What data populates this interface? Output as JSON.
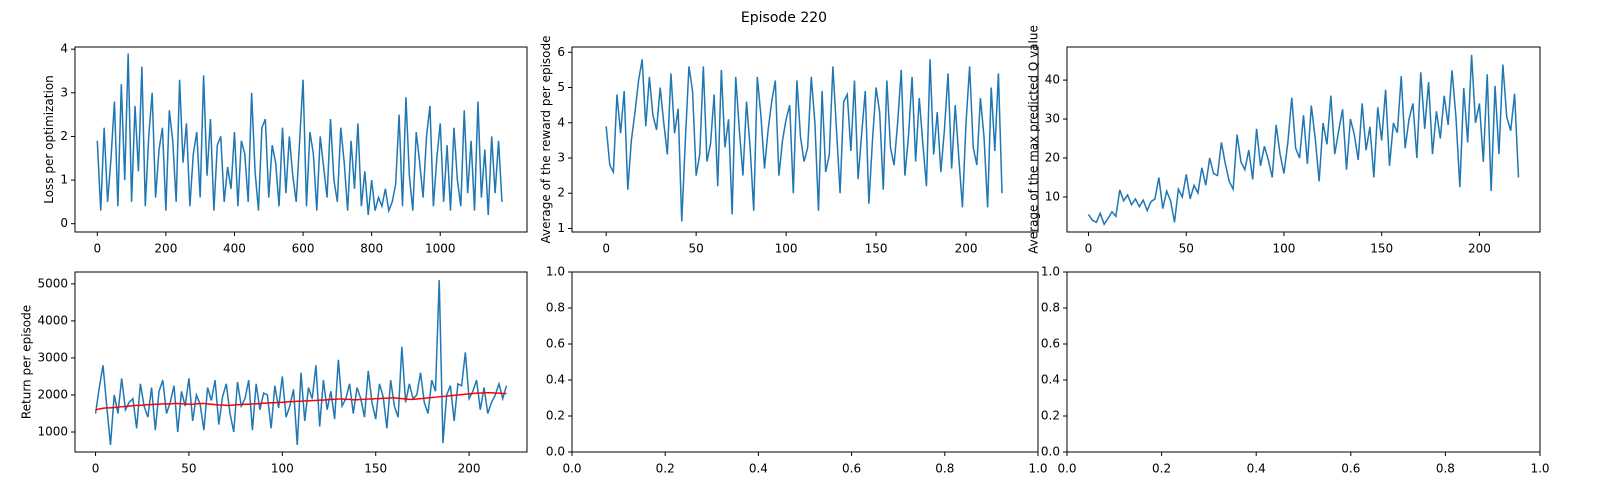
{
  "title": "Episode 220",
  "chart_data": [
    {
      "type": "line",
      "ylabel": "Loss per optimization",
      "x": [
        0,
        10,
        20,
        30,
        40,
        50,
        60,
        70,
        80,
        90,
        100,
        110,
        120,
        130,
        140,
        150,
        160,
        170,
        180,
        190,
        200,
        210,
        220,
        230,
        240,
        250,
        260,
        270,
        280,
        290,
        300,
        310,
        320,
        330,
        340,
        350,
        360,
        370,
        380,
        390,
        400,
        410,
        420,
        430,
        440,
        450,
        460,
        470,
        480,
        490,
        500,
        510,
        520,
        530,
        540,
        550,
        560,
        570,
        580,
        590,
        600,
        610,
        620,
        630,
        640,
        650,
        660,
        670,
        680,
        690,
        700,
        710,
        720,
        730,
        740,
        750,
        760,
        770,
        780,
        790,
        800,
        810,
        820,
        830,
        840,
        850,
        860,
        870,
        880,
        890,
        900,
        910,
        920,
        930,
        940,
        950,
        960,
        970,
        980,
        990,
        1000,
        1010,
        1020,
        1030,
        1040,
        1050,
        1060,
        1070,
        1080,
        1090,
        1100,
        1110,
        1120,
        1130,
        1140,
        1150,
        1160,
        1170,
        1180
      ],
      "series": [
        {
          "color": "#1f77b4",
          "values": [
            1.9,
            0.3,
            2.2,
            0.5,
            1.5,
            2.8,
            0.4,
            3.2,
            1.0,
            3.9,
            0.5,
            2.7,
            1.2,
            3.6,
            0.4,
            2.0,
            3.0,
            0.6,
            1.7,
            2.2,
            0.3,
            2.6,
            1.9,
            0.5,
            3.3,
            1.4,
            2.3,
            0.4,
            1.6,
            2.1,
            0.6,
            3.4,
            1.1,
            2.4,
            0.3,
            1.8,
            2.0,
            0.5,
            1.3,
            0.8,
            2.1,
            0.4,
            1.9,
            1.6,
            0.5,
            3.0,
            1.2,
            0.3,
            2.2,
            2.4,
            0.6,
            1.8,
            1.4,
            0.4,
            2.2,
            0.7,
            2.0,
            1.1,
            0.5,
            1.9,
            3.3,
            0.4,
            2.1,
            1.6,
            0.3,
            2.0,
            1.3,
            0.6,
            2.4,
            1.0,
            0.5,
            2.2,
            1.4,
            0.3,
            1.9,
            0.8,
            2.3,
            0.4,
            1.2,
            0.2,
            1.0,
            0.3,
            0.6,
            0.4,
            0.8,
            0.3,
            0.5,
            0.9,
            2.5,
            0.4,
            2.9,
            1.1,
            0.3,
            2.1,
            1.4,
            0.6,
            2.0,
            2.7,
            0.4,
            1.5,
            2.3,
            0.5,
            1.8,
            0.3,
            2.2,
            1.0,
            0.4,
            2.6,
            0.7,
            1.9,
            0.3,
            2.8,
            0.6,
            1.7,
            0.2,
            2.0,
            0.7,
            1.9,
            0.5
          ]
        }
      ],
      "xlim": [
        -65,
        1253
      ],
      "xticks": [
        0,
        200,
        400,
        600,
        800,
        1000
      ],
      "ylim": [
        -0.19,
        4.05
      ],
      "yticks": [
        0,
        1,
        2,
        3,
        4
      ]
    },
    {
      "type": "line",
      "ylabel": "Average of the reward per episode",
      "x": [
        0,
        2,
        4,
        6,
        8,
        10,
        12,
        14,
        16,
        18,
        20,
        22,
        24,
        26,
        28,
        30,
        32,
        34,
        36,
        38,
        40,
        42,
        44,
        46,
        48,
        50,
        52,
        54,
        56,
        58,
        60,
        62,
        64,
        66,
        68,
        70,
        72,
        74,
        76,
        78,
        80,
        82,
        84,
        86,
        88,
        90,
        92,
        94,
        96,
        98,
        100,
        102,
        104,
        106,
        108,
        110,
        112,
        114,
        116,
        118,
        120,
        122,
        124,
        126,
        128,
        130,
        132,
        134,
        136,
        138,
        140,
        142,
        144,
        146,
        148,
        150,
        152,
        154,
        156,
        158,
        160,
        162,
        164,
        166,
        168,
        170,
        172,
        174,
        176,
        178,
        180,
        182,
        184,
        186,
        188,
        190,
        192,
        194,
        196,
        198,
        200,
        202,
        204,
        206,
        208,
        210,
        212,
        214,
        216,
        218,
        220
      ],
      "series": [
        {
          "color": "#1f77b4",
          "values": [
            3.9,
            2.8,
            2.6,
            4.8,
            3.7,
            4.9,
            2.1,
            3.5,
            4.3,
            5.2,
            5.8,
            3.9,
            5.3,
            4.2,
            3.8,
            5.0,
            4.0,
            3.1,
            5.4,
            3.7,
            4.4,
            1.2,
            3.5,
            5.6,
            4.9,
            2.5,
            3.1,
            5.6,
            2.9,
            3.4,
            4.8,
            2.2,
            5.5,
            3.3,
            4.1,
            1.4,
            5.3,
            3.8,
            2.5,
            4.6,
            3.3,
            1.5,
            5.3,
            4.2,
            2.7,
            3.8,
            4.6,
            5.2,
            2.5,
            3.5,
            4.1,
            4.5,
            2.0,
            5.2,
            3.6,
            2.9,
            3.3,
            5.3,
            4.0,
            1.5,
            4.9,
            2.6,
            3.1,
            5.6,
            3.8,
            2.0,
            4.6,
            4.8,
            3.2,
            5.2,
            2.4,
            3.7,
            4.9,
            1.7,
            3.5,
            5.0,
            4.3,
            2.1,
            5.2,
            3.3,
            2.8,
            4.0,
            5.5,
            2.5,
            3.6,
            5.3,
            2.9,
            4.7,
            3.4,
            2.2,
            5.8,
            3.1,
            4.3,
            2.6,
            3.8,
            5.4,
            2.7,
            4.5,
            3.0,
            1.6,
            4.0,
            5.6,
            3.3,
            2.8,
            4.7,
            3.6,
            1.6,
            5.0,
            3.2,
            5.4,
            2.0
          ]
        }
      ],
      "xlim": [
        -19,
        240
      ],
      "xticks": [
        0,
        50,
        100,
        150,
        200
      ],
      "ylim": [
        0.9,
        6.15
      ],
      "yticks": [
        1,
        2,
        3,
        4,
        5,
        6
      ]
    },
    {
      "type": "line",
      "ylabel": "Average of the max predicted Q value",
      "x": [
        0,
        2,
        4,
        6,
        8,
        10,
        12,
        14,
        16,
        18,
        20,
        22,
        24,
        26,
        28,
        30,
        32,
        34,
        36,
        38,
        40,
        42,
        44,
        46,
        48,
        50,
        52,
        54,
        56,
        58,
        60,
        62,
        64,
        66,
        68,
        70,
        72,
        74,
        76,
        78,
        80,
        82,
        84,
        86,
        88,
        90,
        92,
        94,
        96,
        98,
        100,
        102,
        104,
        106,
        108,
        110,
        112,
        114,
        116,
        118,
        120,
        122,
        124,
        126,
        128,
        130,
        132,
        134,
        136,
        138,
        140,
        142,
        144,
        146,
        148,
        150,
        152,
        154,
        156,
        158,
        160,
        162,
        164,
        166,
        168,
        170,
        172,
        174,
        176,
        178,
        180,
        182,
        184,
        186,
        188,
        190,
        192,
        194,
        196,
        198,
        200,
        202,
        204,
        206,
        208,
        210,
        212,
        214,
        216,
        218,
        220
      ],
      "series": [
        {
          "color": "#1f77b4",
          "values": [
            5.5,
            4.0,
            3.5,
            5.8,
            3.0,
            4.5,
            6.2,
            5.0,
            11.8,
            9.0,
            10.5,
            8.0,
            9.5,
            7.5,
            9.2,
            6.5,
            8.8,
            9.5,
            15.0,
            7.0,
            11.5,
            9.0,
            3.5,
            12.0,
            10.0,
            15.8,
            9.5,
            13.0,
            11.0,
            17.5,
            13.0,
            20.0,
            16.0,
            15.5,
            24.0,
            18.5,
            14.0,
            12.0,
            26.0,
            19.0,
            17.0,
            22.0,
            14.5,
            27.5,
            18.0,
            23.0,
            19.5,
            15.0,
            28.5,
            21.0,
            16.0,
            24.0,
            35.5,
            22.5,
            20.0,
            31.0,
            18.5,
            33.5,
            25.0,
            14.0,
            29.0,
            23.5,
            36.0,
            21.0,
            27.0,
            32.5,
            17.0,
            30.0,
            26.0,
            19.5,
            34.0,
            22.0,
            28.0,
            15.0,
            33.0,
            24.5,
            37.5,
            18.0,
            29.0,
            26.5,
            41.0,
            22.5,
            30.0,
            34.0,
            20.0,
            42.0,
            27.5,
            39.5,
            21.0,
            32.0,
            25.0,
            36.0,
            28.5,
            42.5,
            30.5,
            12.5,
            38.0,
            24.0,
            46.5,
            29.0,
            34.0,
            19.0,
            41.5,
            11.5,
            38.5,
            21.0,
            44.0,
            30.5,
            27.0,
            36.5,
            15.0
          ]
        }
      ],
      "xlim": [
        -11,
        231
      ],
      "xticks": [
        0,
        50,
        100,
        150,
        200
      ],
      "ylim": [
        1,
        48.5
      ],
      "yticks": [
        10,
        20,
        30,
        40
      ]
    },
    {
      "type": "line",
      "ylabel": "Return per episode",
      "x": [
        0,
        2,
        4,
        6,
        8,
        10,
        12,
        14,
        16,
        18,
        20,
        22,
        24,
        26,
        28,
        30,
        32,
        34,
        36,
        38,
        40,
        42,
        44,
        46,
        48,
        50,
        52,
        54,
        56,
        58,
        60,
        62,
        64,
        66,
        68,
        70,
        72,
        74,
        76,
        78,
        80,
        82,
        84,
        86,
        88,
        90,
        92,
        94,
        96,
        98,
        100,
        102,
        104,
        106,
        108,
        110,
        112,
        114,
        116,
        118,
        120,
        122,
        124,
        126,
        128,
        130,
        132,
        134,
        136,
        138,
        140,
        142,
        144,
        146,
        148,
        150,
        152,
        154,
        156,
        158,
        160,
        162,
        164,
        166,
        168,
        170,
        172,
        174,
        176,
        178,
        180,
        182,
        184,
        186,
        188,
        190,
        192,
        194,
        196,
        198,
        200,
        202,
        204,
        206,
        208,
        210,
        212,
        214,
        216,
        218,
        220
      ],
      "series": [
        {
          "color": "#1f77b4",
          "values": [
            1500,
            2200,
            2800,
            1700,
            650,
            2000,
            1500,
            2450,
            1600,
            1800,
            1900,
            1100,
            2300,
            1700,
            1400,
            2200,
            1050,
            2100,
            2400,
            1500,
            1800,
            2250,
            1000,
            2100,
            1700,
            2450,
            1300,
            2000,
            1750,
            1050,
            2200,
            1850,
            2400,
            1200,
            1950,
            2300,
            1500,
            1000,
            2350,
            1700,
            1900,
            2400,
            1050,
            2300,
            1600,
            2050,
            2000,
            1100,
            2250,
            1650,
            2500,
            1400,
            1700,
            2150,
            650,
            2600,
            1300,
            2200,
            1900,
            2800,
            1150,
            2400,
            1600,
            2100,
            1350,
            2950,
            1700,
            1900,
            2300,
            1500,
            2200,
            1900,
            1400,
            2650,
            1800,
            1350,
            2300,
            1950,
            1100,
            2400,
            1700,
            1400,
            3300,
            1800,
            2300,
            1900,
            2000,
            2600,
            1800,
            1500,
            2400,
            2100,
            5100,
            700,
            2000,
            2250,
            1300,
            2300,
            2250,
            3150,
            1900,
            2100,
            2400,
            1600,
            2200,
            1500,
            1800,
            2000,
            2300,
            1900,
            2250
          ]
        },
        {
          "color": "#ff0000",
          "values": [
            1600,
            1620,
            1640,
            1650,
            1650,
            1660,
            1670,
            1680,
            1690,
            1700,
            1710,
            1720,
            1720,
            1730,
            1740,
            1740,
            1750,
            1750,
            1760,
            1760,
            1760,
            1770,
            1770,
            1760,
            1760,
            1750,
            1750,
            1760,
            1770,
            1770,
            1760,
            1750,
            1740,
            1730,
            1730,
            1720,
            1720,
            1730,
            1740,
            1740,
            1750,
            1750,
            1760,
            1760,
            1770,
            1780,
            1780,
            1790,
            1790,
            1800,
            1800,
            1810,
            1820,
            1820,
            1830,
            1830,
            1840,
            1840,
            1850,
            1850,
            1860,
            1860,
            1870,
            1880,
            1880,
            1890,
            1890,
            1880,
            1880,
            1870,
            1870,
            1880,
            1880,
            1890,
            1890,
            1900,
            1900,
            1910,
            1910,
            1920,
            1920,
            1910,
            1900,
            1890,
            1880,
            1880,
            1890,
            1900,
            1910,
            1920,
            1930,
            1940,
            1950,
            1960,
            1970,
            1980,
            1990,
            2000,
            2010,
            2020,
            2030,
            2040,
            2050,
            2050,
            2060,
            2060,
            2060,
            2050,
            2050,
            2040,
            2040
          ]
        }
      ],
      "xlim": [
        -11,
        231
      ],
      "xticks": [
        0,
        50,
        100,
        150,
        200
      ],
      "ylim": [
        460,
        5320
      ],
      "yticks": [
        1000,
        2000,
        3000,
        4000,
        5000
      ]
    },
    {
      "type": "line",
      "series": [],
      "xlim": [
        0,
        1
      ],
      "xticks": [
        {
          "value": 0,
          "label": "0.0"
        },
        {
          "value": 0.2,
          "label": "0.2"
        },
        {
          "value": 0.4,
          "label": "0.4"
        },
        {
          "value": 0.6,
          "label": "0.6"
        },
        {
          "value": 0.8,
          "label": "0.8"
        },
        {
          "value": 1,
          "label": "1.0"
        }
      ],
      "ylim": [
        0,
        1
      ],
      "yticks": [
        {
          "value": 0,
          "label": "0.0"
        },
        {
          "value": 0.2,
          "label": "0.2"
        },
        {
          "value": 0.4,
          "label": "0.4"
        },
        {
          "value": 0.6,
          "label": "0.6"
        },
        {
          "value": 0.8,
          "label": "0.8"
        },
        {
          "value": 1,
          "label": "1.0"
        }
      ]
    },
    {
      "type": "line",
      "series": [],
      "xlim": [
        0,
        1
      ],
      "xticks": [
        {
          "value": 0,
          "label": "0.0"
        },
        {
          "value": 0.2,
          "label": "0.2"
        },
        {
          "value": 0.4,
          "label": "0.4"
        },
        {
          "value": 0.6,
          "label": "0.6"
        },
        {
          "value": 0.8,
          "label": "0.8"
        },
        {
          "value": 1,
          "label": "1.0"
        }
      ],
      "ylim": [
        0,
        1
      ],
      "yticks": [
        {
          "value": 0,
          "label": "0.0"
        },
        {
          "value": 0.2,
          "label": "0.2"
        },
        {
          "value": 0.4,
          "label": "0.4"
        },
        {
          "value": 0.6,
          "label": "0.6"
        },
        {
          "value": 0.8,
          "label": "0.8"
        },
        {
          "value": 1,
          "label": "1.0"
        }
      ]
    }
  ]
}
